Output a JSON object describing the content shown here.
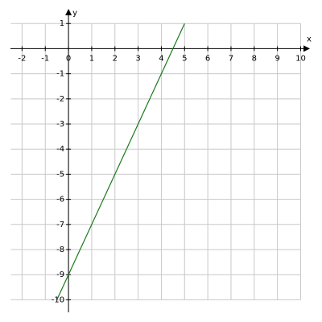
{
  "chart_data": {
    "type": "line",
    "xlabel": "x",
    "ylabel": "y",
    "xlim": [
      -2.5,
      10.4
    ],
    "ylim": [
      -10.5,
      1.2
    ],
    "xticks": [
      -2,
      -1,
      0,
      1,
      2,
      3,
      4,
      5,
      6,
      7,
      8,
      9,
      10
    ],
    "yticks": [
      1,
      -1,
      -2,
      -3,
      -4,
      -5,
      -6,
      -7,
      -8,
      -9,
      -10
    ],
    "grid": true,
    "series": [
      {
        "color": "#1a7a1a",
        "x": [
          -0.5,
          5
        ],
        "values": [
          -10,
          1
        ]
      }
    ]
  }
}
